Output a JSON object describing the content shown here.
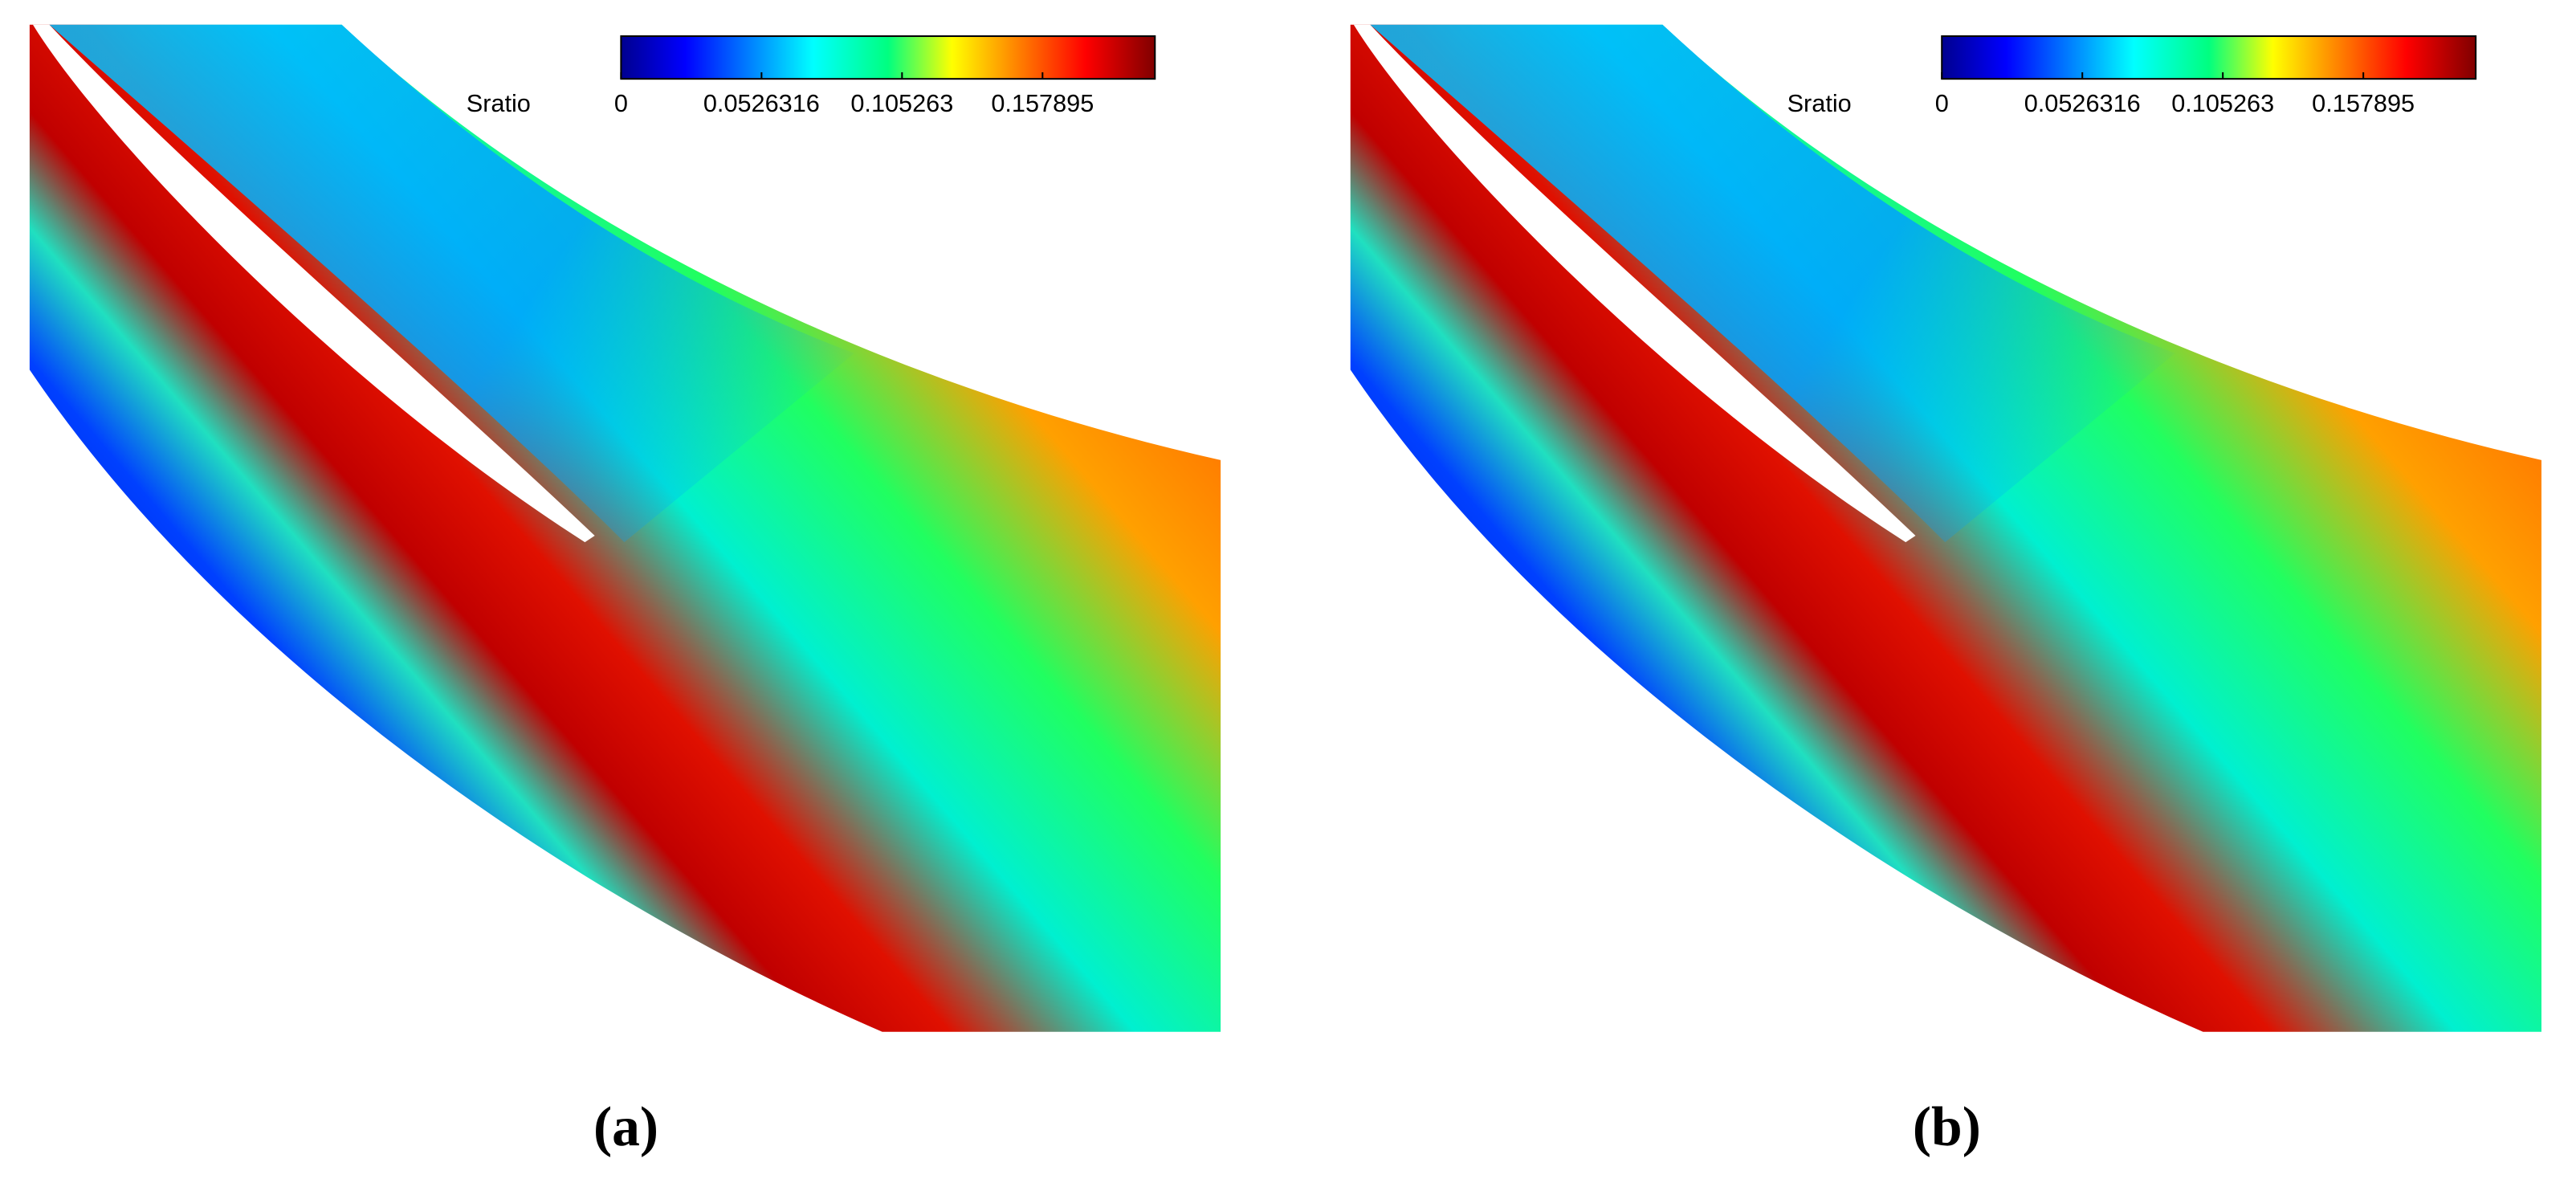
{
  "chart_data": [
    {
      "type": "contour",
      "label": "(a)",
      "colorbar": {
        "title": "Sratio",
        "lim": [
          0,
          0.2
        ],
        "ticks": [
          0,
          0.0526316,
          0.105263,
          0.157895
        ]
      }
    },
    {
      "type": "contour",
      "label": "(b)",
      "colorbar": {
        "title": "Sratio",
        "lim": [
          0,
          0.2
        ],
        "ticks": [
          0,
          0.0526316,
          0.105263,
          0.157895
        ]
      }
    }
  ]
}
